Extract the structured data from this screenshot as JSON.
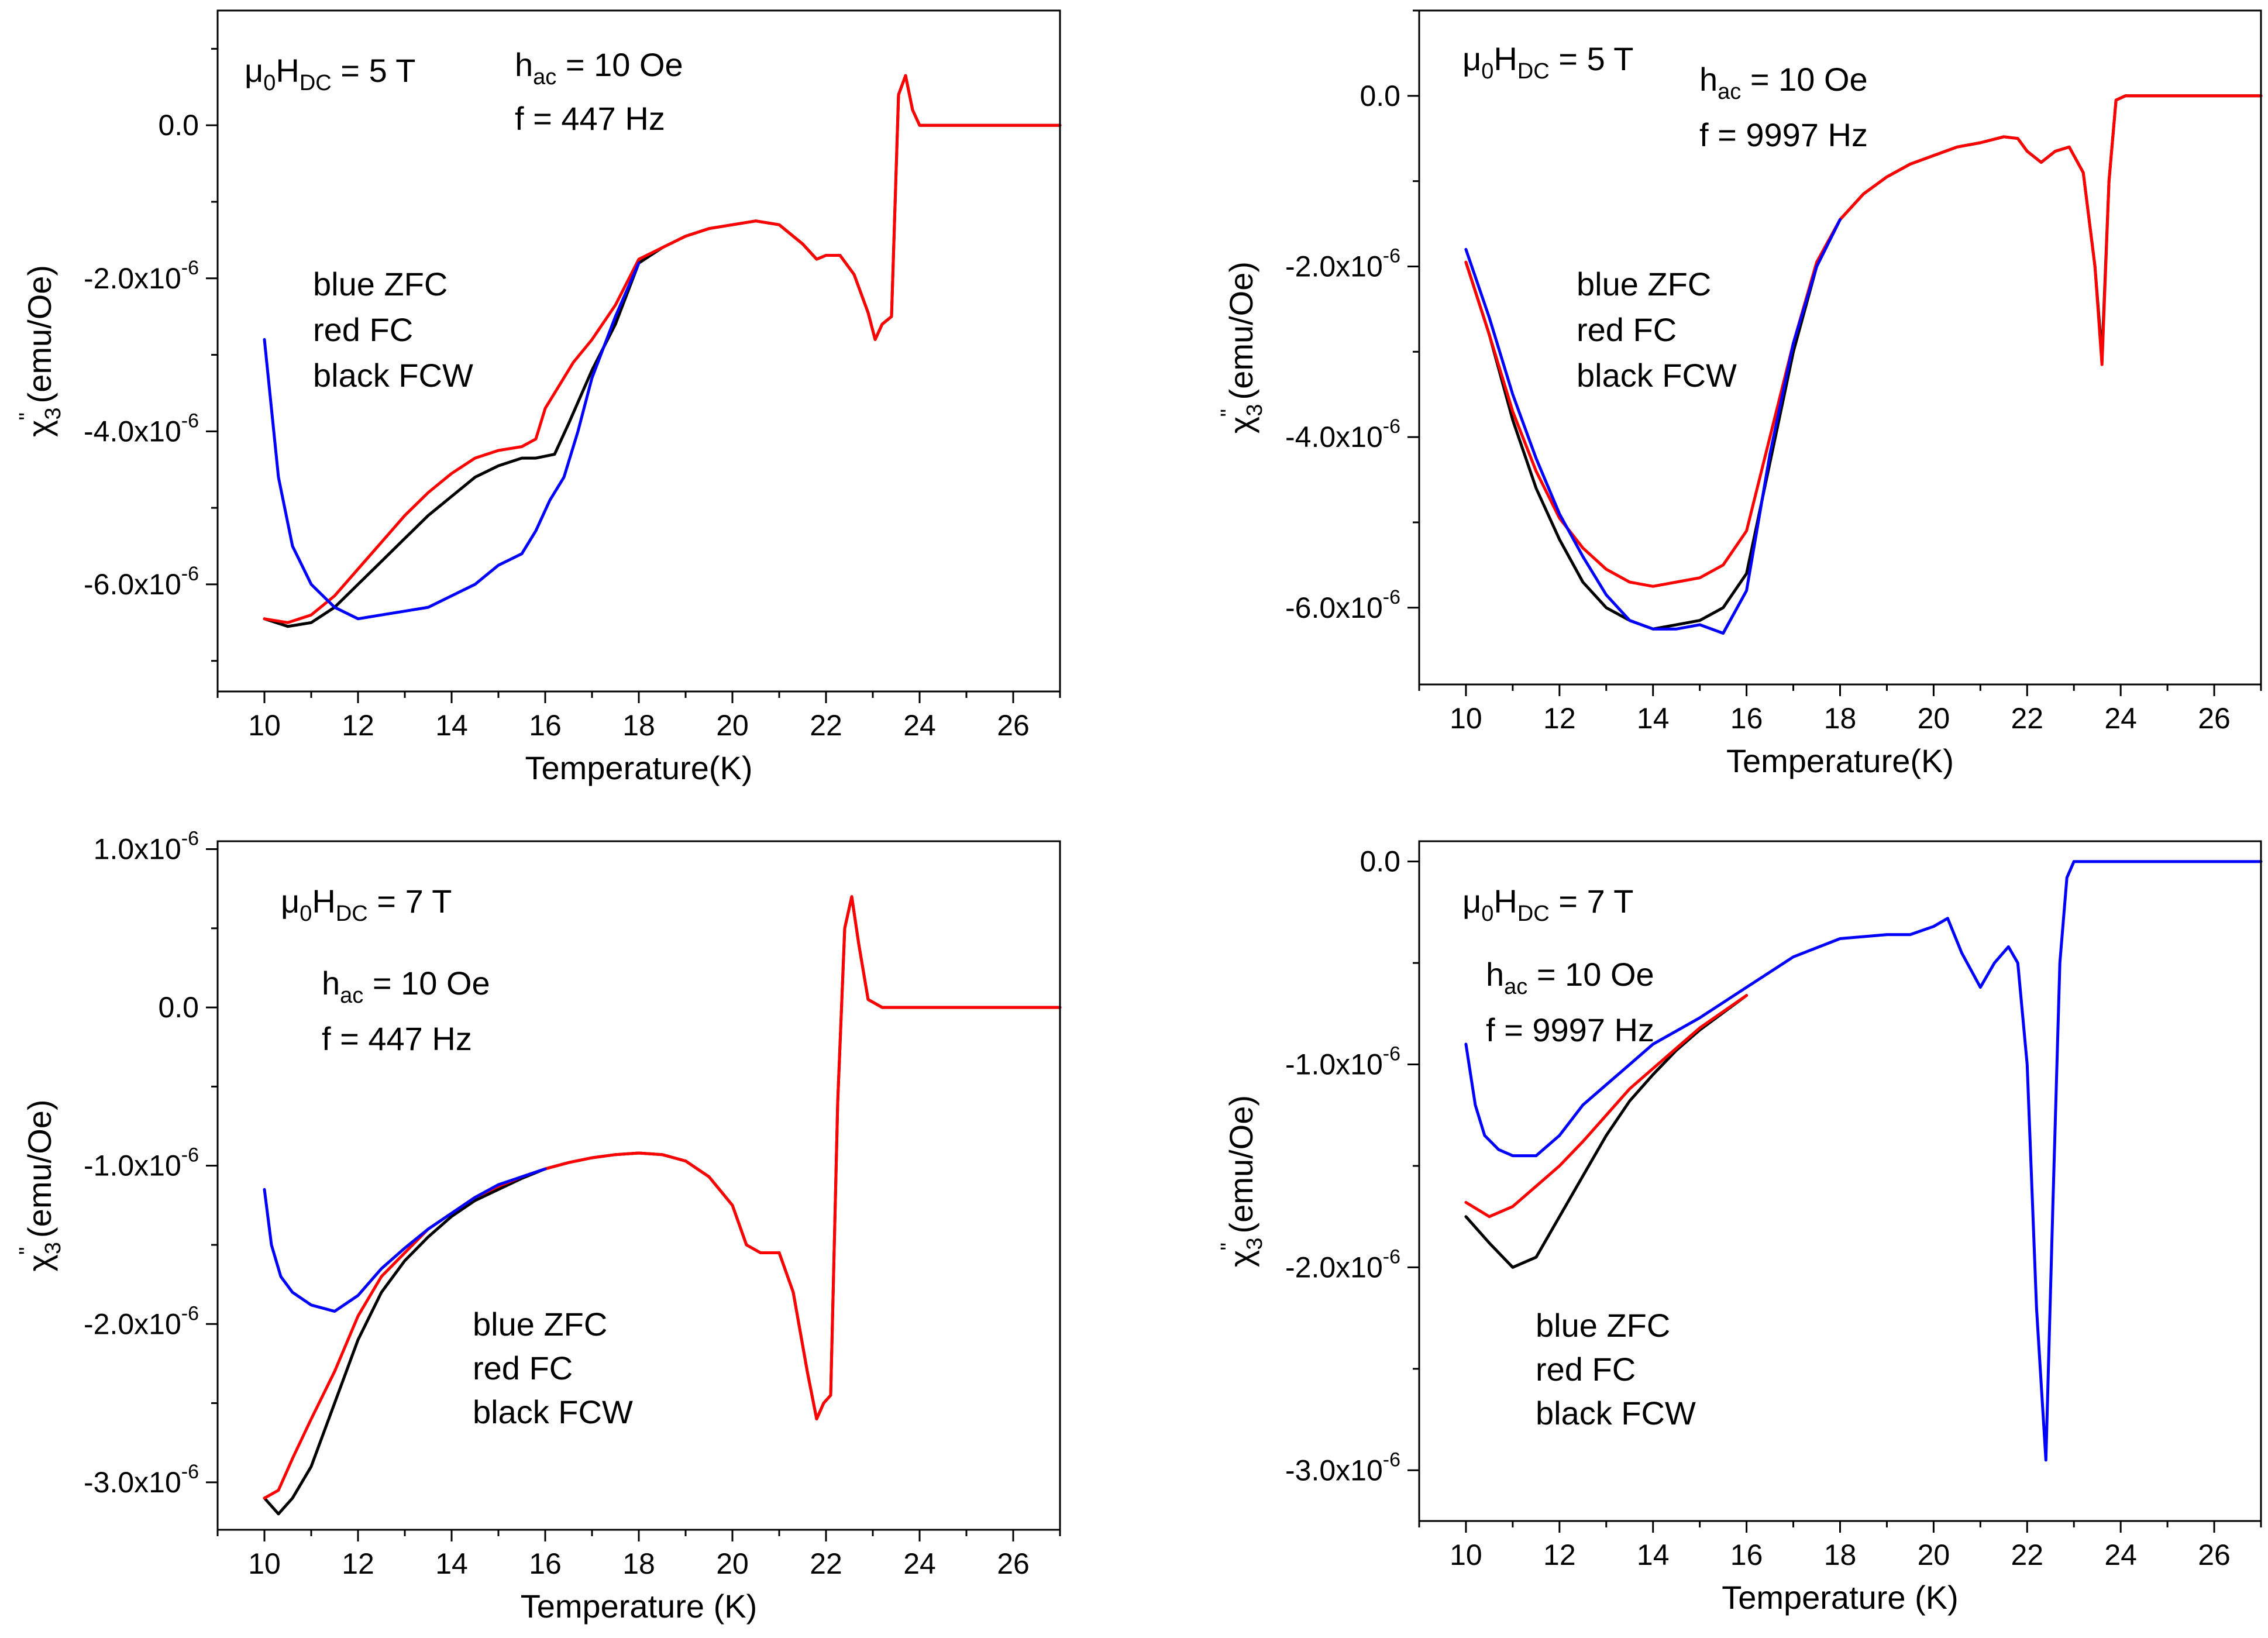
{
  "colors": {
    "zfc": "#0000ff",
    "fc": "#ff0000",
    "fcw": "#000000"
  },
  "chart_data": [
    {
      "type": "line",
      "xlabel": "Temperature(K)",
      "ylabel": {
        "base": "χ",
        "sub": "3",
        "sup": "\"",
        "unit": " (emu/Oe)"
      },
      "xlim": [
        9,
        27
      ],
      "ylim": [
        -7.4,
        1.5
      ],
      "xticks": [
        "10",
        "12",
        "14",
        "16",
        "18",
        "20",
        "22",
        "24",
        "26"
      ],
      "xtick_values": [
        10,
        12,
        14,
        16,
        18,
        20,
        22,
        24,
        26
      ],
      "yticks": [
        {
          "value": 0,
          "mant": "0.0",
          "exp": ""
        },
        {
          "value": -2,
          "mant": "-2.0x10",
          "exp": "-6"
        },
        {
          "value": -4,
          "mant": "-4.0x10",
          "exp": "-6"
        },
        {
          "value": -6,
          "mant": "-6.0x10",
          "exp": "-6"
        }
      ],
      "annotations": {
        "field": {
          "pre": "μ",
          "s1": "0",
          "mid": "H",
          "s2": "DC",
          "post": " = 5 T"
        },
        "hac": {
          "pre": "h",
          "sub": "ac",
          "post": " = 10 Oe"
        },
        "freq": "f = 447 Hz",
        "legend": [
          "blue ZFC",
          "red FC",
          "black FCW"
        ]
      },
      "series": [
        {
          "color": "fcw",
          "x": [
            10,
            10.5,
            11,
            11.5,
            12,
            12.5,
            13,
            13.5,
            14,
            14.5,
            15,
            15.5,
            15.8,
            16.2,
            16.5,
            17,
            17.5,
            18,
            18.5,
            19,
            19.5,
            20,
            20.5,
            21,
            21.5,
            21.8,
            22,
            22.3,
            22.6,
            22.9,
            23.05,
            23.2,
            23.4,
            23.55,
            23.7,
            23.85,
            24,
            25,
            26,
            27
          ],
          "y": [
            -6.45,
            -6.55,
            -6.5,
            -6.3,
            -6.0,
            -5.7,
            -5.4,
            -5.1,
            -4.85,
            -4.6,
            -4.45,
            -4.35,
            -4.35,
            -4.3,
            -3.9,
            -3.2,
            -2.6,
            -1.8,
            -1.6,
            -1.45,
            -1.35,
            -1.3,
            -1.25,
            -1.3,
            -1.55,
            -1.75,
            -1.7,
            -1.7,
            -1.95,
            -2.45,
            -2.8,
            -2.6,
            -2.5,
            0.4,
            0.65,
            0.2,
            0.0,
            0.0,
            0.0,
            0.0
          ]
        },
        {
          "color": "fc",
          "x": [
            10,
            10.5,
            11,
            11.5,
            12,
            12.5,
            13,
            13.5,
            14,
            14.5,
            15,
            15.5,
            15.8,
            16,
            16.3,
            16.6,
            17,
            17.5,
            18,
            18.5,
            19,
            19.5,
            20,
            20.5,
            21,
            21.5,
            21.8,
            22,
            22.3,
            22.6,
            22.9,
            23.05,
            23.2,
            23.4,
            23.55,
            23.7,
            23.85,
            24,
            25,
            26,
            27
          ],
          "y": [
            -6.45,
            -6.5,
            -6.4,
            -6.15,
            -5.8,
            -5.45,
            -5.1,
            -4.8,
            -4.55,
            -4.35,
            -4.25,
            -4.2,
            -4.1,
            -3.7,
            -3.4,
            -3.1,
            -2.8,
            -2.35,
            -1.75,
            -1.6,
            -1.45,
            -1.35,
            -1.3,
            -1.25,
            -1.3,
            -1.55,
            -1.75,
            -1.7,
            -1.7,
            -1.95,
            -2.45,
            -2.8,
            -2.6,
            -2.5,
            0.4,
            0.65,
            0.2,
            0.0,
            0.0,
            0.0,
            0.0
          ]
        },
        {
          "color": "zfc",
          "x": [
            10,
            10.3,
            10.6,
            11,
            11.5,
            12,
            12.5,
            13,
            13.5,
            14,
            14.5,
            15,
            15.5,
            15.8,
            16.1,
            16.4,
            16.7,
            17,
            17.5,
            18
          ],
          "y": [
            -2.8,
            -4.6,
            -5.5,
            -6.0,
            -6.3,
            -6.45,
            -6.4,
            -6.35,
            -6.3,
            -6.15,
            -6.0,
            -5.75,
            -5.6,
            -5.3,
            -4.9,
            -4.6,
            -4.0,
            -3.3,
            -2.5,
            -1.8
          ]
        }
      ]
    },
    {
      "type": "line",
      "xlabel": "Temperature(K)",
      "ylabel": {
        "base": "χ",
        "sub": "3",
        "sup": "\"",
        "unit": " (emu/Oe)"
      },
      "xlim": [
        9,
        27
      ],
      "ylim": [
        -6.9,
        1.0
      ],
      "xticks": [
        "10",
        "12",
        "14",
        "16",
        "18",
        "20",
        "22",
        "24",
        "26"
      ],
      "xtick_values": [
        10,
        12,
        14,
        16,
        18,
        20,
        22,
        24,
        26
      ],
      "yticks": [
        {
          "value": 0,
          "mant": "0.0",
          "exp": ""
        },
        {
          "value": -2,
          "mant": "-2.0x10",
          "exp": "-6"
        },
        {
          "value": -4,
          "mant": "-4.0x10",
          "exp": "-6"
        },
        {
          "value": -6,
          "mant": "-6.0x10",
          "exp": "-6"
        }
      ],
      "annotations": {
        "field": {
          "pre": "μ",
          "s1": "0",
          "mid": "H",
          "s2": "DC",
          "post": " = 5 T"
        },
        "hac": {
          "pre": "h",
          "sub": "ac",
          "post": " = 10 Oe"
        },
        "freq": "f = 9997 Hz",
        "legend": [
          "blue ZFC",
          "red FC",
          "black FCW"
        ]
      },
      "series": [
        {
          "color": "fcw",
          "x": [
            10,
            10.5,
            11,
            11.5,
            12,
            12.5,
            13,
            13.5,
            14,
            14.5,
            15,
            15.5,
            16,
            16.5,
            17,
            17.5,
            18,
            18.5,
            19,
            19.5,
            20,
            20.5,
            21,
            21.5,
            21.8,
            22,
            22.3,
            22.6,
            22.9,
            23.2,
            23.45,
            23.6,
            23.75,
            23.9,
            24.1,
            25,
            26,
            27
          ],
          "y": [
            -1.95,
            -2.8,
            -3.8,
            -4.6,
            -5.2,
            -5.7,
            -6.0,
            -6.15,
            -6.25,
            -6.2,
            -6.15,
            -6.0,
            -5.6,
            -4.3,
            -3.0,
            -2.0,
            -1.45,
            -1.15,
            -0.95,
            -0.8,
            -0.7,
            -0.6,
            -0.55,
            -0.48,
            -0.5,
            -0.65,
            -0.78,
            -0.65,
            -0.6,
            -0.9,
            -2.0,
            -3.05,
            -1.0,
            -0.05,
            0.0,
            0.0,
            0.0,
            0.0
          ]
        },
        {
          "color": "fc",
          "x": [
            10,
            10.5,
            11,
            11.5,
            12,
            12.5,
            13,
            13.5,
            14,
            14.5,
            15,
            15.5,
            16,
            16.5,
            17,
            17.5,
            18,
            18.5,
            19,
            19.5,
            20,
            20.5,
            21,
            21.5,
            21.8,
            22,
            22.3,
            22.6,
            22.9,
            23.2,
            23.45,
            23.6,
            23.75,
            23.9,
            24.1,
            25,
            26,
            27
          ],
          "y": [
            -1.95,
            -2.8,
            -3.7,
            -4.4,
            -4.95,
            -5.3,
            -5.55,
            -5.7,
            -5.75,
            -5.7,
            -5.65,
            -5.5,
            -5.1,
            -4.0,
            -2.9,
            -1.95,
            -1.45,
            -1.15,
            -0.95,
            -0.8,
            -0.7,
            -0.6,
            -0.55,
            -0.48,
            -0.5,
            -0.65,
            -0.78,
            -0.65,
            -0.6,
            -0.9,
            -2.0,
            -3.15,
            -1.0,
            -0.05,
            0.0,
            0.0,
            0.0,
            0.0
          ]
        },
        {
          "color": "zfc",
          "x": [
            10,
            10.5,
            11,
            11.5,
            12,
            12.5,
            13,
            13.5,
            14,
            14.5,
            15,
            15.5,
            16,
            16.5,
            17,
            17.5,
            18
          ],
          "y": [
            -1.8,
            -2.6,
            -3.5,
            -4.25,
            -4.9,
            -5.4,
            -5.85,
            -6.15,
            -6.25,
            -6.25,
            -6.2,
            -6.3,
            -5.8,
            -4.2,
            -2.9,
            -2.0,
            -1.45
          ]
        }
      ]
    },
    {
      "type": "line",
      "xlabel": "Temperature (K)",
      "ylabel": {
        "base": "χ",
        "sub": "3",
        "sup": "\"",
        "unit": " (emu/Oe)"
      },
      "xlim": [
        9,
        27
      ],
      "ylim": [
        -3.3,
        1.05
      ],
      "xticks": [
        "10",
        "12",
        "14",
        "16",
        "18",
        "20",
        "22",
        "24",
        "26"
      ],
      "xtick_values": [
        10,
        12,
        14,
        16,
        18,
        20,
        22,
        24,
        26
      ],
      "yticks": [
        {
          "value": 1,
          "mant": "1.0x10",
          "exp": "-6"
        },
        {
          "value": 0,
          "mant": "0.0",
          "exp": ""
        },
        {
          "value": -1,
          "mant": "-1.0x10",
          "exp": "-6"
        },
        {
          "value": -2,
          "mant": "-2.0x10",
          "exp": "-6"
        },
        {
          "value": -3,
          "mant": "-3.0x10",
          "exp": "-6"
        }
      ],
      "annotations": {
        "field": {
          "pre": "μ",
          "s1": "0",
          "mid": "H",
          "s2": "DC",
          "post": " = 7 T"
        },
        "hac": {
          "pre": "h",
          "sub": "ac",
          "post": " = 10 Oe"
        },
        "freq": "f = 447 Hz",
        "legend": [
          "blue ZFC",
          "red FC",
          "black FCW"
        ]
      },
      "series": [
        {
          "color": "fcw",
          "x": [
            10,
            10.3,
            10.6,
            11,
            11.5,
            12,
            12.5,
            13,
            13.5,
            14,
            14.5,
            15,
            15.5,
            16,
            16.5,
            17,
            17.5,
            18,
            18.5,
            19,
            19.5,
            20,
            20.3,
            20.6,
            21,
            21.3,
            21.6,
            21.8,
            21.95,
            22.1,
            22.25,
            22.4,
            22.55,
            22.7,
            22.9,
            23.2,
            24,
            25,
            26,
            27
          ],
          "y": [
            -3.1,
            -3.2,
            -3.1,
            -2.9,
            -2.5,
            -2.1,
            -1.8,
            -1.6,
            -1.45,
            -1.32,
            -1.22,
            -1.15,
            -1.08,
            -1.02,
            -0.98,
            -0.95,
            -0.93,
            -0.92,
            -0.93,
            -0.97,
            -1.07,
            -1.25,
            -1.5,
            -1.55,
            -1.55,
            -1.8,
            -2.3,
            -2.6,
            -2.5,
            -2.45,
            -0.6,
            0.5,
            0.7,
            0.4,
            0.05,
            0.0,
            0.0,
            0.0,
            0.0,
            0.0
          ]
        },
        {
          "color": "fc",
          "x": [
            10,
            10.3,
            10.6,
            11,
            11.5,
            12,
            12.5,
            13,
            13.5,
            14,
            14.5,
            15,
            15.5,
            16,
            16.5,
            17,
            17.5,
            18,
            18.5,
            19,
            19.5,
            20,
            20.3,
            20.6,
            21,
            21.3,
            21.6,
            21.8,
            21.95,
            22.1,
            22.25,
            22.4,
            22.55,
            22.7,
            22.9,
            23.2,
            24,
            25,
            26,
            27
          ],
          "y": [
            -3.1,
            -3.05,
            -2.85,
            -2.6,
            -2.3,
            -1.95,
            -1.7,
            -1.55,
            -1.4,
            -1.3,
            -1.2,
            -1.13,
            -1.07,
            -1.02,
            -0.98,
            -0.95,
            -0.93,
            -0.92,
            -0.93,
            -0.97,
            -1.07,
            -1.25,
            -1.5,
            -1.55,
            -1.55,
            -1.8,
            -2.3,
            -2.6,
            -2.5,
            -2.45,
            -0.6,
            0.5,
            0.7,
            0.4,
            0.05,
            0.0,
            0.0,
            0.0,
            0.0,
            0.0
          ]
        },
        {
          "color": "zfc",
          "x": [
            10,
            10.15,
            10.35,
            10.6,
            11,
            11.5,
            12,
            12.5,
            13,
            13.5,
            14,
            14.5,
            15,
            15.5,
            16
          ],
          "y": [
            -1.15,
            -1.5,
            -1.7,
            -1.8,
            -1.88,
            -1.92,
            -1.82,
            -1.65,
            -1.52,
            -1.4,
            -1.3,
            -1.2,
            -1.12,
            -1.07,
            -1.02
          ]
        }
      ]
    },
    {
      "type": "line",
      "xlabel": "Temperature (K)",
      "ylabel": {
        "base": "χ",
        "sub": "3",
        "sup": "\"",
        "unit": " (emu/Oe)"
      },
      "xlim": [
        9,
        27
      ],
      "ylim": [
        -3.25,
        0.1
      ],
      "xticks": [
        "10",
        "12",
        "14",
        "16",
        "18",
        "20",
        "22",
        "24",
        "26"
      ],
      "xtick_values": [
        10,
        12,
        14,
        16,
        18,
        20,
        22,
        24,
        26
      ],
      "yticks": [
        {
          "value": 0,
          "mant": "0.0",
          "exp": ""
        },
        {
          "value": -1,
          "mant": "-1.0x10",
          "exp": "-6"
        },
        {
          "value": -2,
          "mant": "-2.0x10",
          "exp": "-6"
        },
        {
          "value": -3,
          "mant": "-3.0x10",
          "exp": "-6"
        }
      ],
      "annotations": {
        "field": {
          "pre": "μ",
          "s1": "0",
          "mid": "H",
          "s2": "DC",
          "post": " = 7 T"
        },
        "hac": {
          "pre": "h",
          "sub": "ac",
          "post": " = 10 Oe"
        },
        "freq": "f = 9997 Hz",
        "legend": [
          "blue ZFC",
          "red FC",
          "black FCW"
        ]
      },
      "series": [
        {
          "color": "fcw",
          "x": [
            10,
            10.5,
            11,
            11.5,
            12,
            12.5,
            13,
            13.5,
            14,
            14.5,
            15,
            16
          ],
          "y": [
            -1.75,
            -1.88,
            -2.0,
            -1.95,
            -1.75,
            -1.55,
            -1.35,
            -1.18,
            -1.05,
            -0.93,
            -0.83,
            -0.66
          ]
        },
        {
          "color": "fc",
          "x": [
            10,
            10.5,
            11,
            11.5,
            12,
            12.5,
            13,
            13.5,
            14,
            14.5,
            15,
            16
          ],
          "y": [
            -1.68,
            -1.75,
            -1.7,
            -1.6,
            -1.5,
            -1.38,
            -1.25,
            -1.12,
            -1.02,
            -0.92,
            -0.82,
            -0.66
          ]
        },
        {
          "color": "zfc",
          "x": [
            10,
            10.2,
            10.4,
            10.7,
            11,
            11.5,
            12,
            12.5,
            13,
            13.5,
            14,
            15,
            16,
            17,
            18,
            19,
            19.5,
            20,
            20.3,
            20.6,
            21,
            21.3,
            21.6,
            21.8,
            22,
            22.2,
            22.4,
            22.55,
            22.7,
            22.85,
            23,
            24,
            25,
            26,
            27
          ],
          "y": [
            -0.9,
            -1.2,
            -1.35,
            -1.42,
            -1.45,
            -1.45,
            -1.35,
            -1.2,
            -1.1,
            -1.0,
            -0.9,
            -0.77,
            -0.62,
            -0.47,
            -0.38,
            -0.36,
            -0.36,
            -0.32,
            -0.28,
            -0.45,
            -0.62,
            -0.5,
            -0.42,
            -0.5,
            -1.0,
            -2.2,
            -2.95,
            -1.7,
            -0.5,
            -0.08,
            0.0,
            0.0,
            0.0,
            0.0,
            0.0
          ]
        }
      ]
    }
  ]
}
